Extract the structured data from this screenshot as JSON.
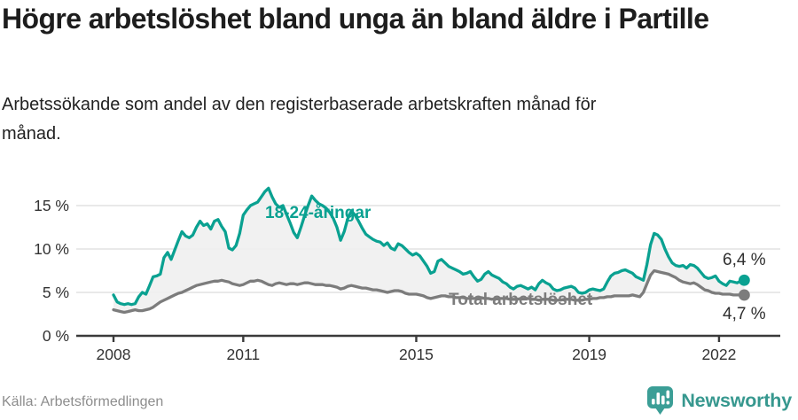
{
  "title": "Högre arbetslöshet bland unga än bland äldre i Partille",
  "subtitle": "Arbetssökande som andel av den registerbaserade arbetskraften månad för månad.",
  "source_note": "Källa: Arbetsförmedlingen",
  "branding": {
    "wordmark": "Newsworthy",
    "icon": "newsworthy-speech-bubble-chart-icon",
    "color": "#37988f",
    "icon_color": "#3b9e96"
  },
  "colors": {
    "youth": "#0aa191",
    "total": "#7c7c7c",
    "value_label": "#2f2f2f",
    "grid": "#e2e2e2",
    "axis": "#3a3a3a",
    "tick_label": "#333333",
    "area_fill": "#f0f0f0"
  },
  "chart_data": {
    "type": "line",
    "unit": "%",
    "x_interval": "month",
    "x_start": "2008-01",
    "x_end": "2022-08",
    "xticks": [
      2008,
      2011,
      2015,
      2019,
      2022
    ],
    "yticks": [
      0,
      5,
      10,
      15
    ],
    "ytick_labels": [
      "0 %",
      "5 %",
      "10 %",
      "15 %"
    ],
    "ylim": [
      0,
      18.5
    ],
    "grid": "horizontal",
    "area_between_series": true,
    "series": [
      {
        "name": "18-24-åringar",
        "color": "#0aa191",
        "end_label": "6,4 %",
        "end_value": 6.4,
        "values": [
          4.7,
          3.9,
          3.7,
          3.6,
          3.7,
          3.6,
          3.7,
          4.5,
          5.0,
          4.8,
          5.8,
          6.8,
          6.9,
          7.1,
          9.0,
          9.6,
          8.8,
          9.9,
          11.0,
          12.0,
          11.5,
          11.3,
          11.6,
          12.5,
          13.2,
          12.7,
          12.9,
          12.3,
          13.2,
          13.4,
          12.6,
          12.0,
          10.1,
          9.9,
          10.4,
          11.8,
          13.9,
          14.5,
          15.0,
          15.2,
          15.4,
          16.0,
          16.6,
          17.0,
          16.0,
          15.2,
          14.8,
          15.0,
          14.0,
          13.0,
          11.9,
          11.3,
          12.5,
          13.8,
          15.0,
          16.1,
          15.6,
          15.2,
          15.0,
          14.7,
          14.2,
          13.5,
          12.5,
          11.0,
          12.0,
          13.5,
          14.4,
          13.9,
          13.2,
          12.4,
          11.7,
          11.4,
          11.1,
          10.9,
          10.8,
          10.4,
          10.7,
          10.1,
          9.9,
          10.6,
          10.4,
          10.0,
          9.6,
          9.3,
          9.5,
          9.2,
          8.6,
          8.0,
          7.2,
          7.4,
          8.6,
          8.8,
          8.4,
          8.0,
          7.8,
          7.6,
          7.4,
          7.1,
          7.2,
          7.4,
          6.8,
          6.3,
          6.5,
          7.1,
          7.4,
          7.0,
          6.8,
          6.6,
          6.2,
          6.0,
          5.6,
          5.4,
          5.7,
          5.8,
          5.6,
          5.4,
          5.6,
          5.3,
          6.0,
          6.4,
          6.1,
          5.9,
          5.4,
          5.2,
          5.3,
          5.5,
          5.6,
          5.7,
          5.5,
          5.0,
          4.9,
          5.0,
          5.3,
          5.4,
          5.3,
          5.2,
          5.4,
          6.2,
          6.9,
          7.2,
          7.3,
          7.5,
          7.6,
          7.4,
          7.2,
          6.8,
          6.6,
          6.4,
          8.2,
          10.5,
          11.8,
          11.6,
          11.1,
          10.0,
          9.1,
          8.4,
          8.1,
          8.0,
          8.1,
          7.8,
          8.2,
          8.1,
          7.8,
          7.3,
          6.8,
          6.6,
          6.7,
          6.9,
          6.3,
          6.0,
          5.8,
          6.3,
          6.2,
          6.1,
          6.3,
          6.4
        ]
      },
      {
        "name": "Total arbetslöshet",
        "color": "#7c7c7c",
        "end_label": "4,7 %",
        "end_value": 4.7,
        "values": [
          3.0,
          2.9,
          2.8,
          2.7,
          2.8,
          2.9,
          3.0,
          2.9,
          2.9,
          3.0,
          3.1,
          3.3,
          3.6,
          3.9,
          4.1,
          4.3,
          4.5,
          4.7,
          4.9,
          5.0,
          5.2,
          5.4,
          5.6,
          5.8,
          5.9,
          6.0,
          6.1,
          6.2,
          6.3,
          6.3,
          6.4,
          6.3,
          6.2,
          6.0,
          5.9,
          5.8,
          5.9,
          6.1,
          6.3,
          6.3,
          6.4,
          6.3,
          6.1,
          5.9,
          5.8,
          6.0,
          6.1,
          6.0,
          5.9,
          6.0,
          6.0,
          5.9,
          6.0,
          6.1,
          6.1,
          6.0,
          5.9,
          5.9,
          5.9,
          5.8,
          5.8,
          5.7,
          5.6,
          5.4,
          5.5,
          5.7,
          5.8,
          5.7,
          5.6,
          5.5,
          5.5,
          5.4,
          5.3,
          5.3,
          5.2,
          5.1,
          5.0,
          5.1,
          5.2,
          5.2,
          5.1,
          4.9,
          4.8,
          4.8,
          4.8,
          4.7,
          4.6,
          4.4,
          4.3,
          4.4,
          4.5,
          4.6,
          4.6,
          4.5,
          4.5,
          4.4,
          4.4,
          4.4,
          4.3,
          4.3,
          4.3,
          4.3,
          4.4,
          4.3,
          4.3,
          4.2,
          4.3,
          4.3,
          4.3,
          4.3,
          4.2,
          4.2,
          4.2,
          4.3,
          4.3,
          4.3,
          4.2,
          4.2,
          4.1,
          4.2,
          4.2,
          4.2,
          4.1,
          4.1,
          4.1,
          4.2,
          4.2,
          4.2,
          4.1,
          4.1,
          4.1,
          4.2,
          4.2,
          4.3,
          4.3,
          4.4,
          4.4,
          4.5,
          4.5,
          4.6,
          4.6,
          4.6,
          4.6,
          4.6,
          4.7,
          4.6,
          4.5,
          5.0,
          6.0,
          7.0,
          7.5,
          7.4,
          7.3,
          7.2,
          7.1,
          6.9,
          6.7,
          6.4,
          6.2,
          6.1,
          6.0,
          6.1,
          5.9,
          5.6,
          5.3,
          5.2,
          5.0,
          4.9,
          4.9,
          4.8,
          4.8,
          4.8,
          4.7,
          4.7,
          4.7,
          4.7
        ]
      }
    ]
  }
}
